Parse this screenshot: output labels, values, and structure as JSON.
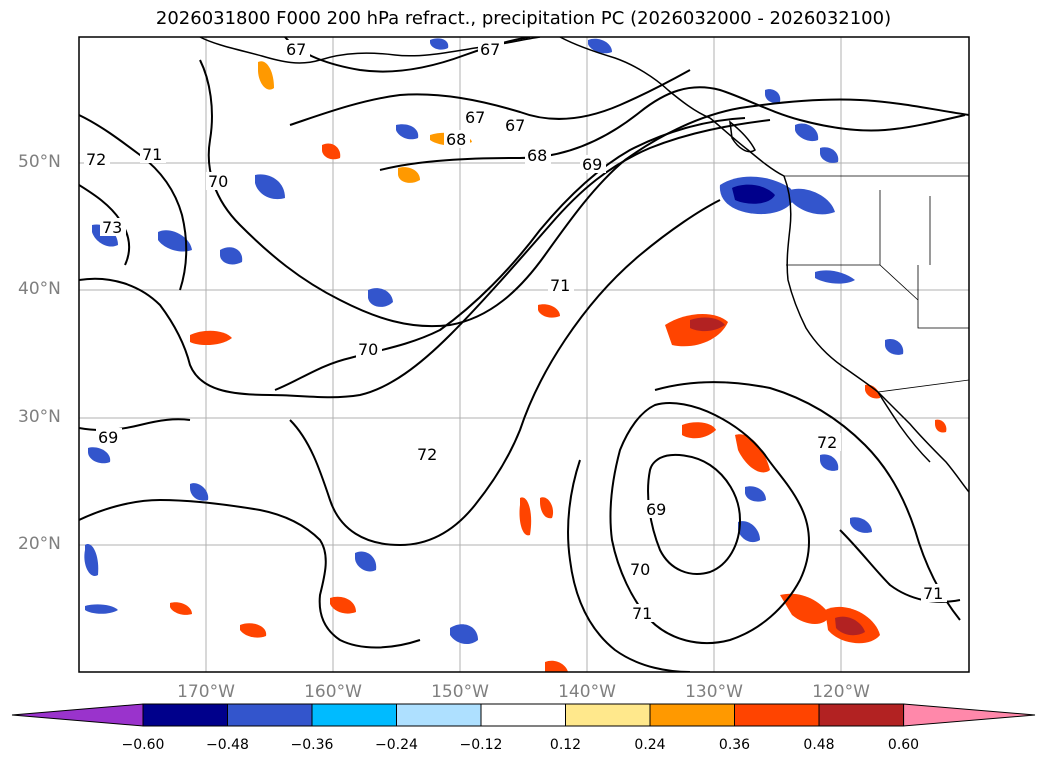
{
  "title": "2026031800 F000 200 hPa refract., precipitation PC (2026032000 - 2026032100)",
  "lat_labels": [
    "50°N",
    "40°N",
    "30°N",
    "20°N"
  ],
  "lon_labels": [
    "170°W",
    "160°W",
    "150°W",
    "140°W",
    "130°W",
    "120°W"
  ],
  "map_extent": {
    "lon": [
      -180,
      -110
    ],
    "lat": [
      10,
      60
    ]
  },
  "gridlines": true,
  "contour_labels": [
    "67",
    "67",
    "67",
    "67",
    "68",
    "68",
    "69",
    "69",
    "69",
    "70",
    "70",
    "70",
    "71",
    "71",
    "71",
    "71",
    "72",
    "72",
    "72",
    "73"
  ],
  "colorbar": {
    "ticks": [
      "−0.60",
      "−0.48",
      "−0.36",
      "−0.24",
      "−0.12",
      "0.12",
      "0.24",
      "0.36",
      "0.48",
      "0.60"
    ],
    "colors": [
      "#9a33cc",
      "#00008b",
      "#3355cc",
      "#00bbff",
      "#aee0ff",
      "#ffffff",
      "#ffe88c",
      "#ff9900",
      "#ff4400",
      "#b22222",
      "#ff88aa"
    ],
    "extend": "both"
  },
  "colors": {
    "ocean": "#ffffff",
    "coast": "#000000",
    "grid": "#b0b0b0",
    "contour": "#000000"
  }
}
